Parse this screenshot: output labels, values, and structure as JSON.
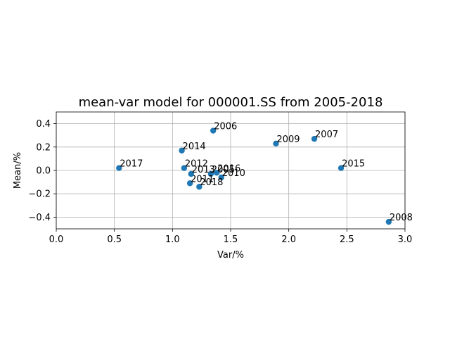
{
  "chart_data": {
    "type": "scatter",
    "title": "mean-var model for 000001.SS from 2005-2018",
    "xlabel": "Var/%",
    "ylabel": "Mean/%",
    "xlim": [
      0.0,
      3.0
    ],
    "ylim": [
      -0.5,
      0.5
    ],
    "xticks": [
      0.0,
      0.5,
      1.0,
      1.5,
      2.0,
      2.5,
      3.0
    ],
    "yticks": [
      -0.4,
      -0.2,
      0.0,
      0.2,
      0.4
    ],
    "xtick_labels": [
      "0.0",
      "0.5",
      "1.0",
      "1.5",
      "2.0",
      "2.5",
      "3.0"
    ],
    "ytick_labels": [
      "−0.4",
      "−0.2",
      "0.0",
      "0.2",
      "0.4"
    ],
    "grid": true,
    "marker_color": "#1f77b4",
    "points": [
      {
        "label": "2005",
        "x": 1.33,
        "y": -0.03
      },
      {
        "label": "2006",
        "x": 1.35,
        "y": 0.34
      },
      {
        "label": "2007",
        "x": 2.22,
        "y": 0.27
      },
      {
        "label": "2008",
        "x": 2.86,
        "y": -0.44
      },
      {
        "label": "2009",
        "x": 1.89,
        "y": 0.23
      },
      {
        "label": "2010",
        "x": 1.42,
        "y": -0.06
      },
      {
        "label": "2011",
        "x": 1.15,
        "y": -0.11
      },
      {
        "label": "2012",
        "x": 1.1,
        "y": 0.02
      },
      {
        "label": "2013",
        "x": 1.16,
        "y": -0.03
      },
      {
        "label": "2014",
        "x": 1.08,
        "y": 0.17
      },
      {
        "label": "2015",
        "x": 2.45,
        "y": 0.02
      },
      {
        "label": "2016",
        "x": 1.38,
        "y": -0.02
      },
      {
        "label": "2017",
        "x": 0.54,
        "y": 0.02
      },
      {
        "label": "2018",
        "x": 1.23,
        "y": -0.14
      }
    ]
  }
}
